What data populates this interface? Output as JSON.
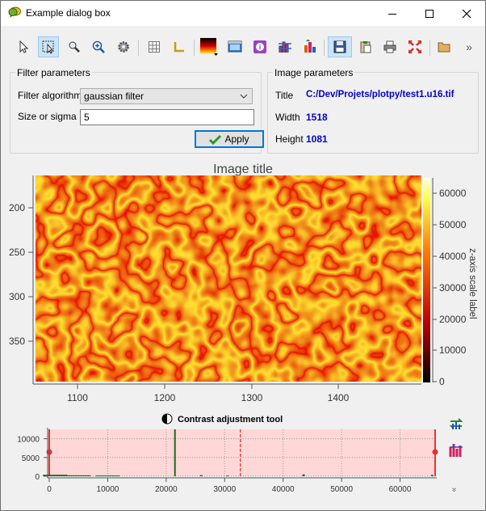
{
  "window": {
    "title": "Example dialog box"
  },
  "toolbar": {
    "buttons": [
      "select-tool",
      "rect-zoom-tool",
      "zoom-tool",
      "zoom-fit-tool",
      "settings-tool",
      "grid-tool",
      "axes-tool",
      "colormap-tool",
      "snapshot-tool",
      "info-tool",
      "histogram-tool",
      "contrast-tool",
      "save-tool",
      "copy-tool",
      "print-tool",
      "fullrange-tool",
      "open-tool"
    ],
    "overflow": "»"
  },
  "filter_params": {
    "title": "Filter parameters",
    "algorithm_label": "Filter algorithm",
    "algorithm_value": "gaussian filter",
    "size_label": "Size or sigma",
    "size_value": "5",
    "apply_label": "Apply"
  },
  "image_params": {
    "title": "Image parameters",
    "title_label": "Title",
    "title_value": "C:/Dev/Projets/plotpy/test1.u16.tif",
    "width_label": "Width",
    "width_value": "1518",
    "height_label": "Height",
    "height_value": "1081"
  },
  "plot": {
    "title": "Image title",
    "zlabel": "z-axis scale label",
    "yticks": [
      "200",
      "250",
      "300",
      "350"
    ],
    "xticks": [
      "1100",
      "1200",
      "1300",
      "1400"
    ],
    "zticks": [
      "0",
      "10000",
      "20000",
      "30000",
      "40000",
      "50000",
      "60000"
    ]
  },
  "contrast": {
    "title": "Contrast adjustment tool",
    "xticks": [
      "0",
      "10000",
      "20000",
      "30000",
      "40000",
      "50000",
      "60000"
    ],
    "yticks": [
      "0",
      "5000",
      "10000"
    ],
    "expand": "»"
  },
  "chart_data": {
    "type": "bar",
    "title": "Contrast adjustment tool",
    "xlim": [
      0,
      66000
    ],
    "ylim": [
      0,
      12500
    ],
    "x": [
      1000,
      5000,
      10000,
      21500,
      26000,
      30500,
      43500,
      65500
    ],
    "values": [
      400,
      250,
      200,
      12500,
      300,
      200,
      500,
      350
    ],
    "range_min": 0,
    "range_max": 65535,
    "marker": 32700,
    "colors": {
      "shade": "#ffd7d7",
      "bars": "#1a6e1a",
      "range": "#d80000"
    }
  }
}
